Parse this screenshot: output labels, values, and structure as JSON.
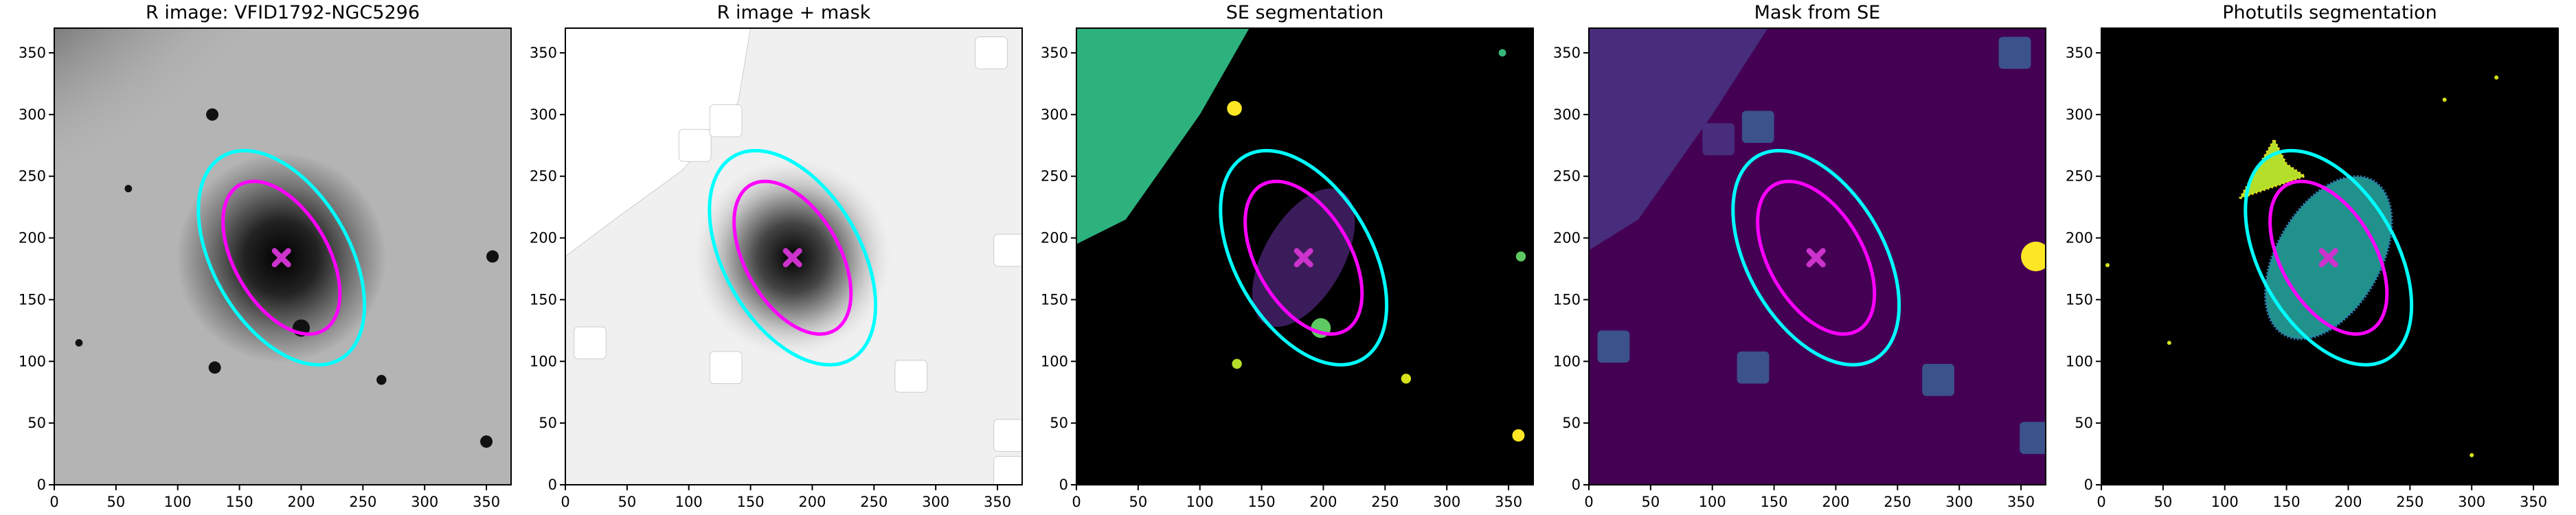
{
  "chart_data": [
    {
      "type": "image",
      "title": "R image: VFID1792-NGC5296",
      "xlim": [
        0,
        370
      ],
      "ylim": [
        0,
        370
      ],
      "xticks": [
        0,
        50,
        100,
        150,
        200,
        250,
        300,
        350
      ],
      "yticks": [
        0,
        50,
        100,
        150,
        200,
        250,
        300,
        350
      ],
      "ellipses": [
        {
          "color": "#00ffff",
          "x": 184,
          "y": 184,
          "width": 190,
          "height": 110,
          "angle": 120
        },
        {
          "color": "#ff00ff",
          "x": 184,
          "y": 184,
          "width": 136,
          "height": 76,
          "angle": 120
        }
      ],
      "center": {
        "x": 184,
        "y": 184,
        "color": "#cc33cc"
      }
    },
    {
      "type": "image",
      "title": "R image + mask",
      "xlim": [
        0,
        370
      ],
      "ylim": [
        0,
        370
      ],
      "xticks": [
        0,
        50,
        100,
        150,
        200,
        250,
        300,
        350
      ],
      "yticks": [
        0,
        50,
        100,
        150,
        200,
        250,
        300,
        350
      ],
      "ellipses": [
        {
          "color": "#00ffff",
          "x": 184,
          "y": 184,
          "width": 190,
          "height": 110,
          "angle": 120
        },
        {
          "color": "#ff00ff",
          "x": 184,
          "y": 184,
          "width": 136,
          "height": 76,
          "angle": 120
        }
      ],
      "center": {
        "x": 184,
        "y": 184,
        "color": "#cc33cc"
      }
    },
    {
      "type": "image",
      "title": "SE segmentation",
      "xlim": [
        0,
        370
      ],
      "ylim": [
        0,
        370
      ],
      "xticks": [
        0,
        50,
        100,
        150,
        200,
        250,
        300,
        350
      ],
      "yticks": [
        0,
        50,
        100,
        150,
        200,
        250,
        300,
        350
      ],
      "ellipses": [
        {
          "color": "#00ffff",
          "x": 184,
          "y": 184,
          "width": 190,
          "height": 110,
          "angle": 120
        },
        {
          "color": "#ff00ff",
          "x": 184,
          "y": 184,
          "width": 136,
          "height": 76,
          "angle": 120
        }
      ],
      "center": {
        "x": 184,
        "y": 184,
        "color": "#cc33cc"
      }
    },
    {
      "type": "image",
      "title": "Mask from SE",
      "xlim": [
        0,
        370
      ],
      "ylim": [
        0,
        370
      ],
      "xticks": [
        0,
        50,
        100,
        150,
        200,
        250,
        300,
        350
      ],
      "yticks": [
        0,
        50,
        100,
        150,
        200,
        250,
        300,
        350
      ],
      "ellipses": [
        {
          "color": "#00ffff",
          "x": 184,
          "y": 184,
          "width": 190,
          "height": 110,
          "angle": 120
        },
        {
          "color": "#ff00ff",
          "x": 184,
          "y": 184,
          "width": 136,
          "height": 76,
          "angle": 120
        }
      ],
      "center": {
        "x": 184,
        "y": 184,
        "color": "#cc33cc"
      }
    },
    {
      "type": "image",
      "title": "Photutils segmentation",
      "xlim": [
        0,
        370
      ],
      "ylim": [
        0,
        370
      ],
      "xticks": [
        0,
        50,
        100,
        150,
        200,
        250,
        300,
        350
      ],
      "yticks": [
        0,
        50,
        100,
        150,
        200,
        250,
        300,
        350
      ],
      "ellipses": [
        {
          "color": "#00ffff",
          "x": 184,
          "y": 184,
          "width": 190,
          "height": 110,
          "angle": 120
        },
        {
          "color": "#ff00ff",
          "x": 184,
          "y": 184,
          "width": 136,
          "height": 76,
          "angle": 120
        }
      ],
      "center": {
        "x": 184,
        "y": 184,
        "color": "#cc33cc"
      }
    }
  ]
}
